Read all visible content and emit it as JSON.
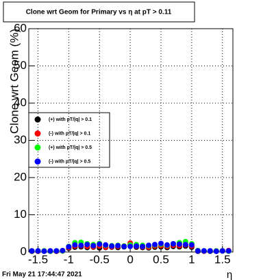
{
  "chart_data": {
    "type": "scatter",
    "title": "Clone wrt Geom for Primary vs   η at pT > 0.11",
    "y_label": "Clone wrt Geom (%)",
    "x_label": "η",
    "timestamp": "Fri May 21 17:44:47 2021",
    "x": [
      -1.6,
      -1.5,
      -1.4,
      -1.3,
      -1.2,
      -1.1,
      -1.0,
      -0.9,
      -0.8,
      -0.7,
      -0.6,
      -0.5,
      -0.4,
      -0.3,
      -0.2,
      -0.1,
      0.0,
      0.1,
      0.2,
      0.3,
      0.4,
      0.5,
      0.6,
      0.7,
      0.8,
      0.9,
      1.0,
      1.1,
      1.2,
      1.3,
      1.4,
      1.5,
      1.6
    ],
    "series": [
      {
        "name": "(+) with pT/|q| > 0.1",
        "color": "#000000",
        "values": [
          0.2,
          0.2,
          0.3,
          0.2,
          0.2,
          0.3,
          1.0,
          1.3,
          1.4,
          1.2,
          1.3,
          1.1,
          1.2,
          1.3,
          1.2,
          1.4,
          2.0,
          1.3,
          1.2,
          1.1,
          1.3,
          1.4,
          1.2,
          1.5,
          1.4,
          1.6,
          1.3,
          0.2,
          0.3,
          0.2,
          0.2,
          0.3,
          0.3
        ]
      },
      {
        "name": "(-) with pT/|q| > 0.1",
        "color": "#ff0000",
        "values": [
          0.3,
          0.2,
          0.3,
          0.3,
          0.2,
          0.3,
          1.2,
          1.6,
          1.7,
          1.5,
          1.4,
          1.6,
          1.3,
          1.4,
          1.5,
          1.6,
          2.4,
          1.5,
          1.4,
          1.3,
          1.6,
          1.7,
          1.5,
          1.8,
          1.7,
          1.9,
          1.6,
          0.3,
          0.2,
          0.3,
          0.3,
          0.3,
          0.4
        ]
      },
      {
        "name": "(+) with pT/|q| > 0.5",
        "color": "#00ff00",
        "values": [
          0.3,
          0.3,
          0.3,
          0.2,
          0.3,
          0.3,
          1.5,
          2.5,
          2.6,
          2.2,
          2.0,
          2.3,
          1.8,
          1.7,
          1.8,
          1.6,
          1.9,
          2.0,
          1.8,
          1.7,
          1.9,
          2.1,
          1.8,
          2.2,
          2.5,
          2.8,
          2.2,
          0.4,
          0.3,
          0.3,
          0.3,
          0.3,
          0.2
        ]
      },
      {
        "name": "(-) with pT/|q| > 0.5",
        "color": "#0000ff",
        "values": [
          0.3,
          0.3,
          0.2,
          0.3,
          0.3,
          0.4,
          1.4,
          1.9,
          1.8,
          2.0,
          1.7,
          2.1,
          1.9,
          1.6,
          1.7,
          1.5,
          1.5,
          1.6,
          1.5,
          1.8,
          2.0,
          2.3,
          1.9,
          2.2,
          2.1,
          2.0,
          1.9,
          0.3,
          0.3,
          0.3,
          0.2,
          0.3,
          0.3
        ]
      }
    ],
    "xlim": [
      -1.65,
      1.67
    ],
    "ylim": [
      0,
      60
    ],
    "xticks": [
      -1.5,
      -1,
      -0.5,
      0,
      0.5,
      1,
      1.5
    ],
    "yticks": [
      0,
      10,
      20,
      30,
      40,
      50,
      60
    ],
    "grid": true
  }
}
